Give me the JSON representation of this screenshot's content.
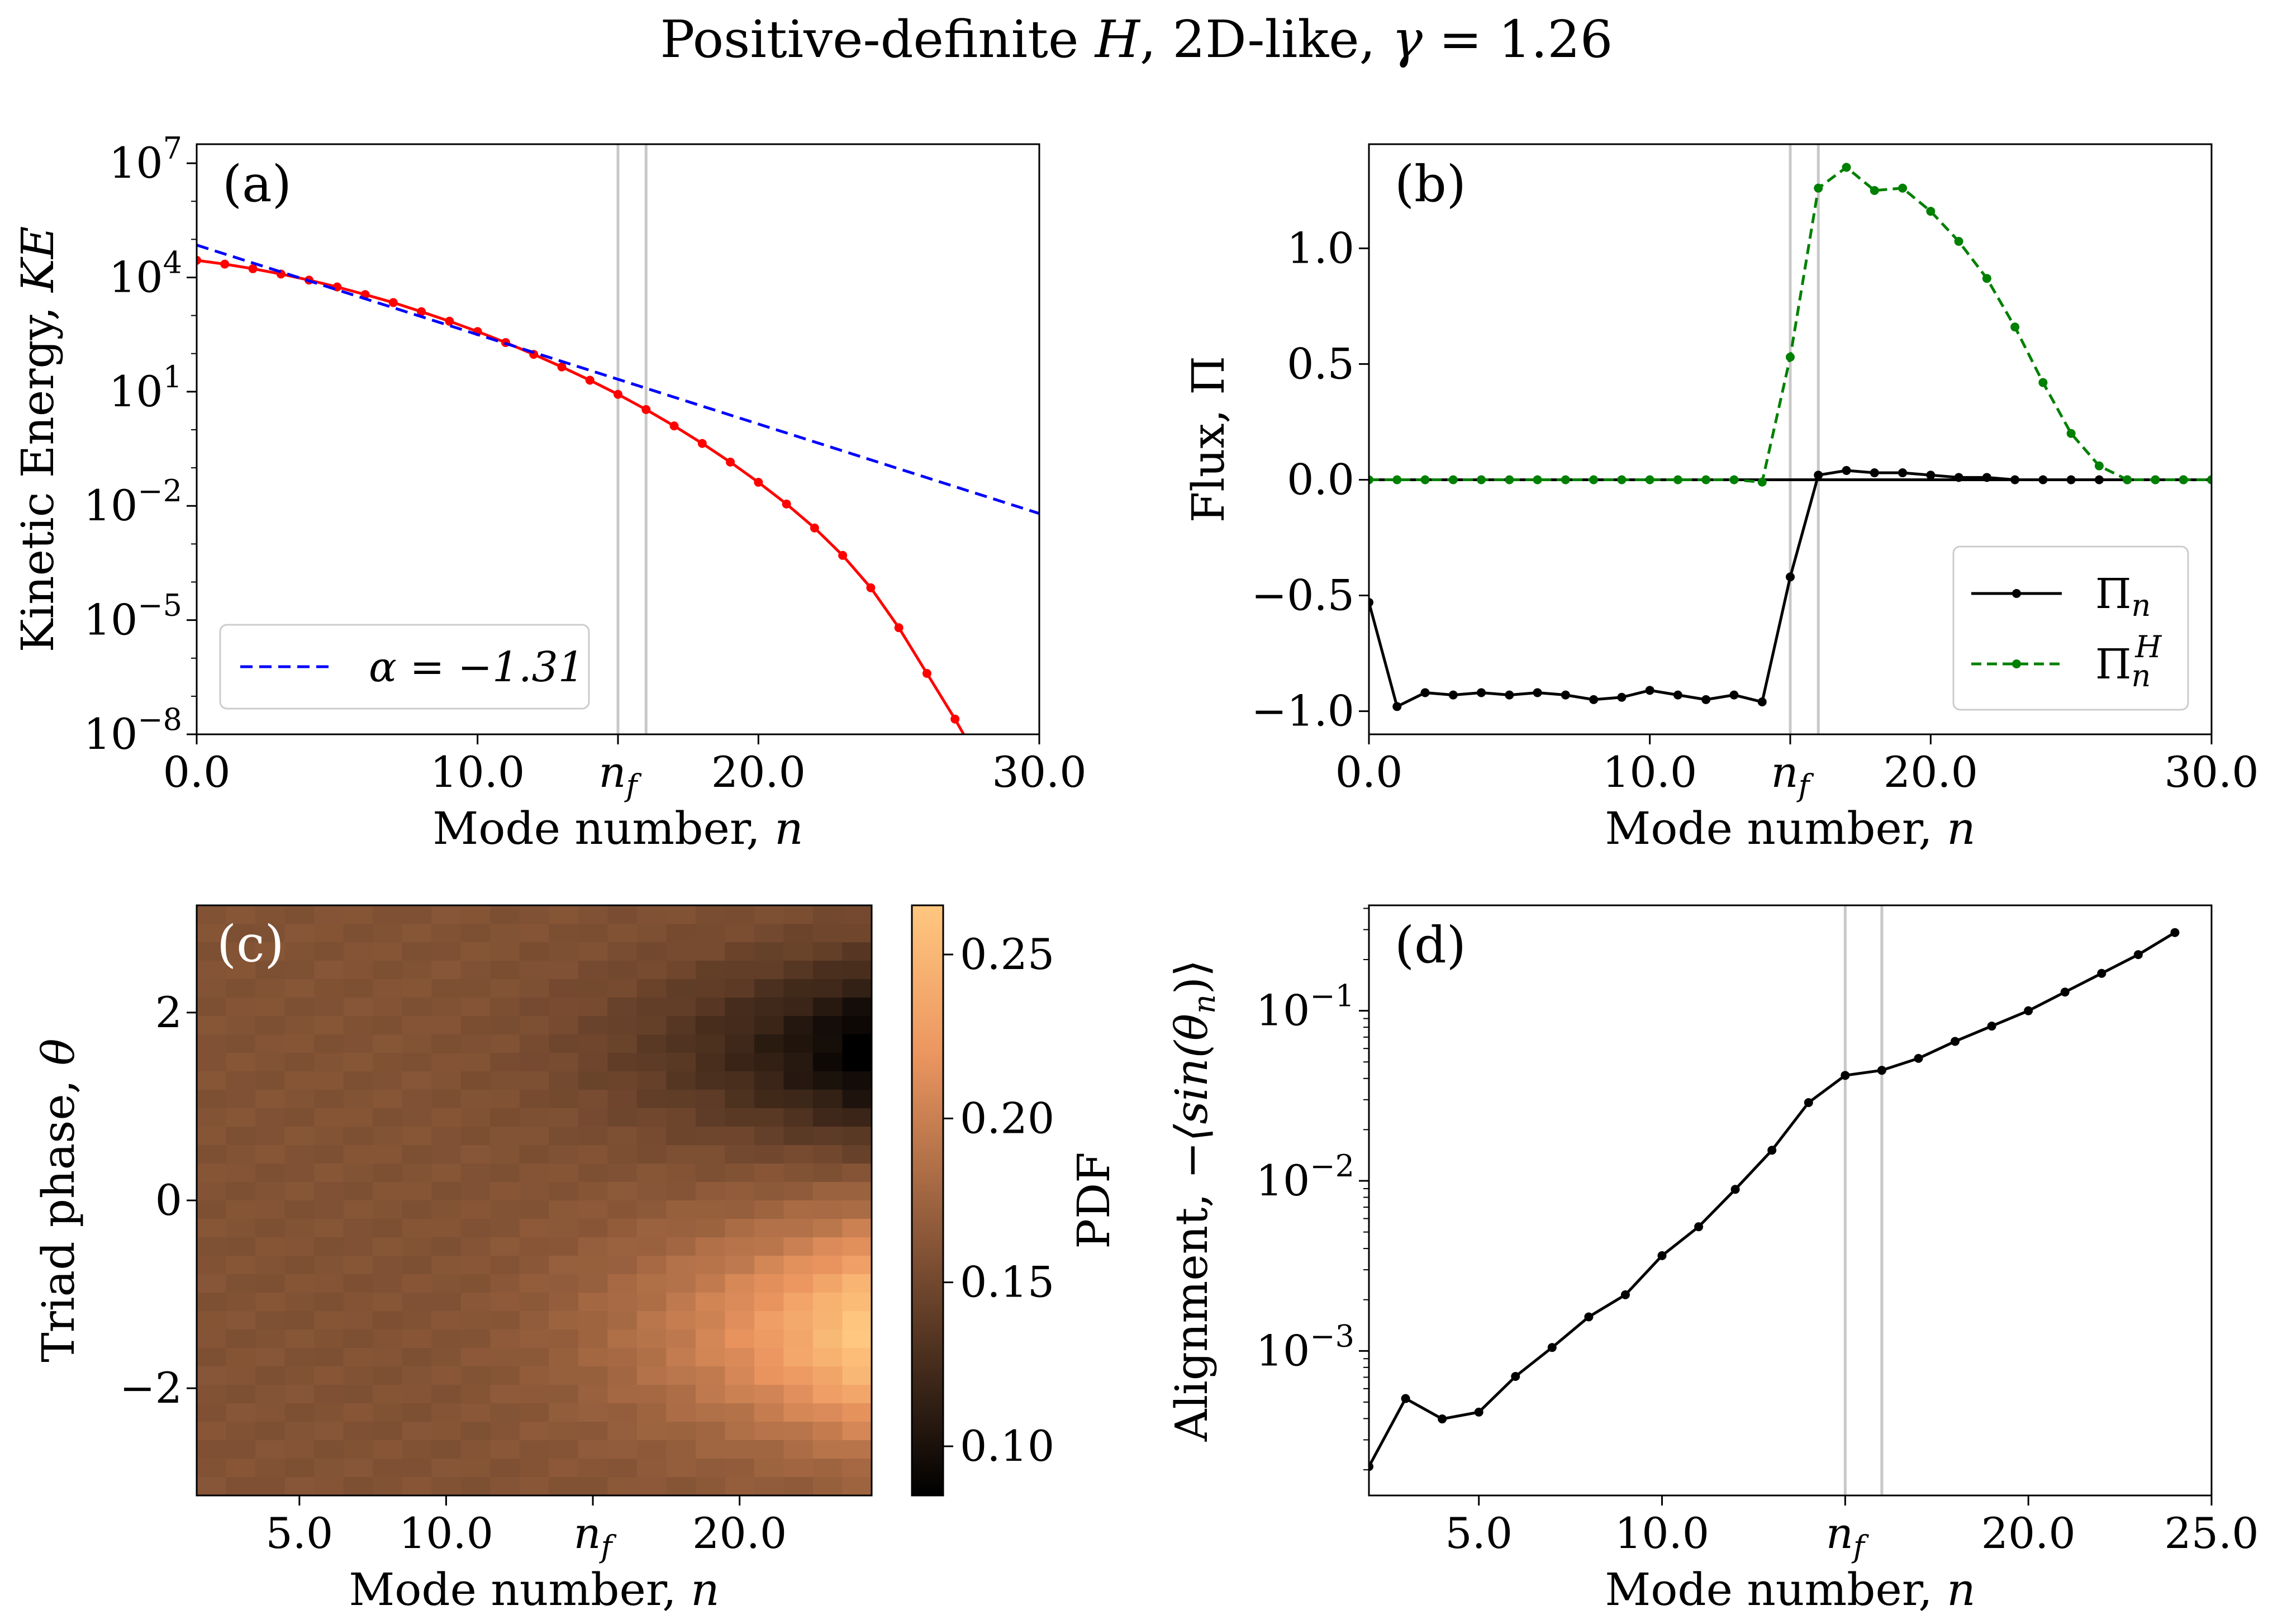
{
  "figure": {
    "title": "Positive-definite H, 2D-like, γ = 1.26"
  },
  "chart_data": [
    {
      "panel": "(a)",
      "type": "line",
      "xlabel": "Mode number, n",
      "ylabel": "Kinetic Energy, KE",
      "xlim": [
        0,
        30
      ],
      "ylim_log10": [
        -8,
        7.5
      ],
      "yscale": "log",
      "xticks": [
        "0.0",
        "10.0",
        "n_f",
        "20.0",
        "30.0"
      ],
      "yticks": [
        "10^7",
        "10^4",
        "10^1",
        "10^-2",
        "10^-5",
        "10^-8"
      ],
      "vlines": [
        15,
        16
      ],
      "series": [
        {
          "name": "",
          "color": "#ff0000",
          "style": "solid-markers",
          "x": [
            0,
            1,
            2,
            3,
            4,
            5,
            6,
            7,
            8,
            9,
            10,
            11,
            12,
            13,
            14,
            15,
            16,
            17,
            18,
            19,
            20,
            21,
            22,
            23,
            24,
            25,
            26,
            27,
            28,
            29
          ],
          "log10_y": [
            4.45,
            4.35,
            4.23,
            4.09,
            3.93,
            3.75,
            3.55,
            3.34,
            3.1,
            2.85,
            2.58,
            2.29,
            1.98,
            1.65,
            1.3,
            0.93,
            0.53,
            0.1,
            -0.36,
            -0.85,
            -1.38,
            -1.95,
            -2.58,
            -3.3,
            -4.15,
            -5.2,
            -6.4,
            -7.6,
            -8.9,
            -10.3
          ]
        },
        {
          "name": "α = −1.31",
          "color": "#0000ff",
          "style": "dashed",
          "x": [
            0,
            30
          ],
          "log10_y": [
            4.85,
            -2.2
          ]
        }
      ],
      "legend": "lower-left"
    },
    {
      "panel": "(b)",
      "type": "line",
      "xlabel": "Mode number, n",
      "ylabel": "Flux, Π",
      "xlim": [
        0,
        30
      ],
      "ylim": [
        -1.1,
        1.45
      ],
      "xticks": [
        "0.0",
        "10.0",
        "n_f",
        "20.0",
        "30.0"
      ],
      "yticks": [
        "1.0",
        "0.5",
        "0.0",
        "−0.5",
        "−1.0"
      ],
      "vlines": [
        15,
        16
      ],
      "series": [
        {
          "name": "Π_n",
          "color": "#000000",
          "style": "solid-markers",
          "x": [
            0,
            1,
            2,
            3,
            4,
            5,
            6,
            7,
            8,
            9,
            10,
            11,
            12,
            13,
            14,
            15,
            16,
            17,
            18,
            19,
            20,
            21,
            22,
            23,
            24,
            25,
            26,
            27,
            28,
            29,
            30
          ],
          "y": [
            -0.53,
            -0.98,
            -0.92,
            -0.93,
            -0.92,
            -0.93,
            -0.92,
            -0.93,
            -0.95,
            -0.94,
            -0.91,
            -0.93,
            -0.95,
            -0.93,
            -0.96,
            -0.42,
            0.02,
            0.04,
            0.03,
            0.03,
            0.02,
            0.01,
            0.01,
            0.0,
            0.0,
            0.0,
            0.0,
            0.0,
            0.0,
            0.0,
            0.0
          ]
        },
        {
          "name": "Π_n^H",
          "color": "#008000",
          "style": "dashed-markers",
          "x": [
            0,
            1,
            2,
            3,
            4,
            5,
            6,
            7,
            8,
            9,
            10,
            11,
            12,
            13,
            14,
            15,
            16,
            17,
            18,
            19,
            20,
            21,
            22,
            23,
            24,
            25,
            26,
            27,
            28,
            29,
            30
          ],
          "y": [
            0,
            0,
            0,
            0,
            0,
            0,
            0,
            0,
            0,
            0,
            0,
            0,
            0,
            0,
            -0.01,
            0.53,
            1.26,
            1.35,
            1.25,
            1.26,
            1.16,
            1.03,
            0.87,
            0.66,
            0.42,
            0.2,
            0.06,
            0.0,
            0.0,
            0.0,
            0.0
          ]
        }
      ],
      "legend": "lower-right"
    },
    {
      "panel": "(c)",
      "type": "heatmap",
      "xlabel": "Mode number, n",
      "ylabel": "Triad phase, θ",
      "xlim": [
        1.5,
        24.5
      ],
      "ylim": [
        -3.1416,
        3.1416
      ],
      "xticks": [
        "5.0",
        "10.0",
        "n_f",
        "20.0"
      ],
      "yticks": [
        "2",
        "0",
        "−2"
      ],
      "colorbar": {
        "label": "PDF",
        "range": [
          0.085,
          0.265
        ],
        "ticks": [
          "0.25",
          "0.20",
          "0.15",
          "0.10"
        ],
        "colormap": "copper"
      },
      "n_columns": 23,
      "n_rows": 32,
      "baseline_pdf": 0.1592
    },
    {
      "panel": "(d)",
      "type": "line",
      "xlabel": "Mode number, n",
      "ylabel": "Alignment, −⟨sin(θ_n)⟩",
      "xlim": [
        2,
        25
      ],
      "yscale": "log",
      "ylim_log10": [
        -3.85,
        -0.38
      ],
      "xticks": [
        "5.0",
        "10.0",
        "n_f",
        "20.0",
        "25.0"
      ],
      "yticks": [
        "10^-1",
        "10^-2",
        "10^-3"
      ],
      "vlines": [
        15,
        16
      ],
      "series": [
        {
          "name": "",
          "color": "#000000",
          "style": "solid-markers",
          "x": [
            2,
            3,
            4,
            5,
            6,
            7,
            8,
            9,
            10,
            11,
            12,
            13,
            14,
            15,
            16,
            17,
            18,
            19,
            20,
            21,
            22,
            23,
            24
          ],
          "log10_y": [
            -3.68,
            -3.28,
            -3.4,
            -3.36,
            -3.15,
            -2.98,
            -2.8,
            -2.67,
            -2.44,
            -2.27,
            -2.05,
            -1.82,
            -1.54,
            -1.38,
            -1.35,
            -1.28,
            -1.18,
            -1.09,
            -1.0,
            -0.89,
            -0.78,
            -0.67,
            -0.54
          ]
        }
      ]
    }
  ],
  "panel_labels": [
    "(a)",
    "(b)",
    "(c)",
    "(d)"
  ],
  "nf_label": "n_f"
}
